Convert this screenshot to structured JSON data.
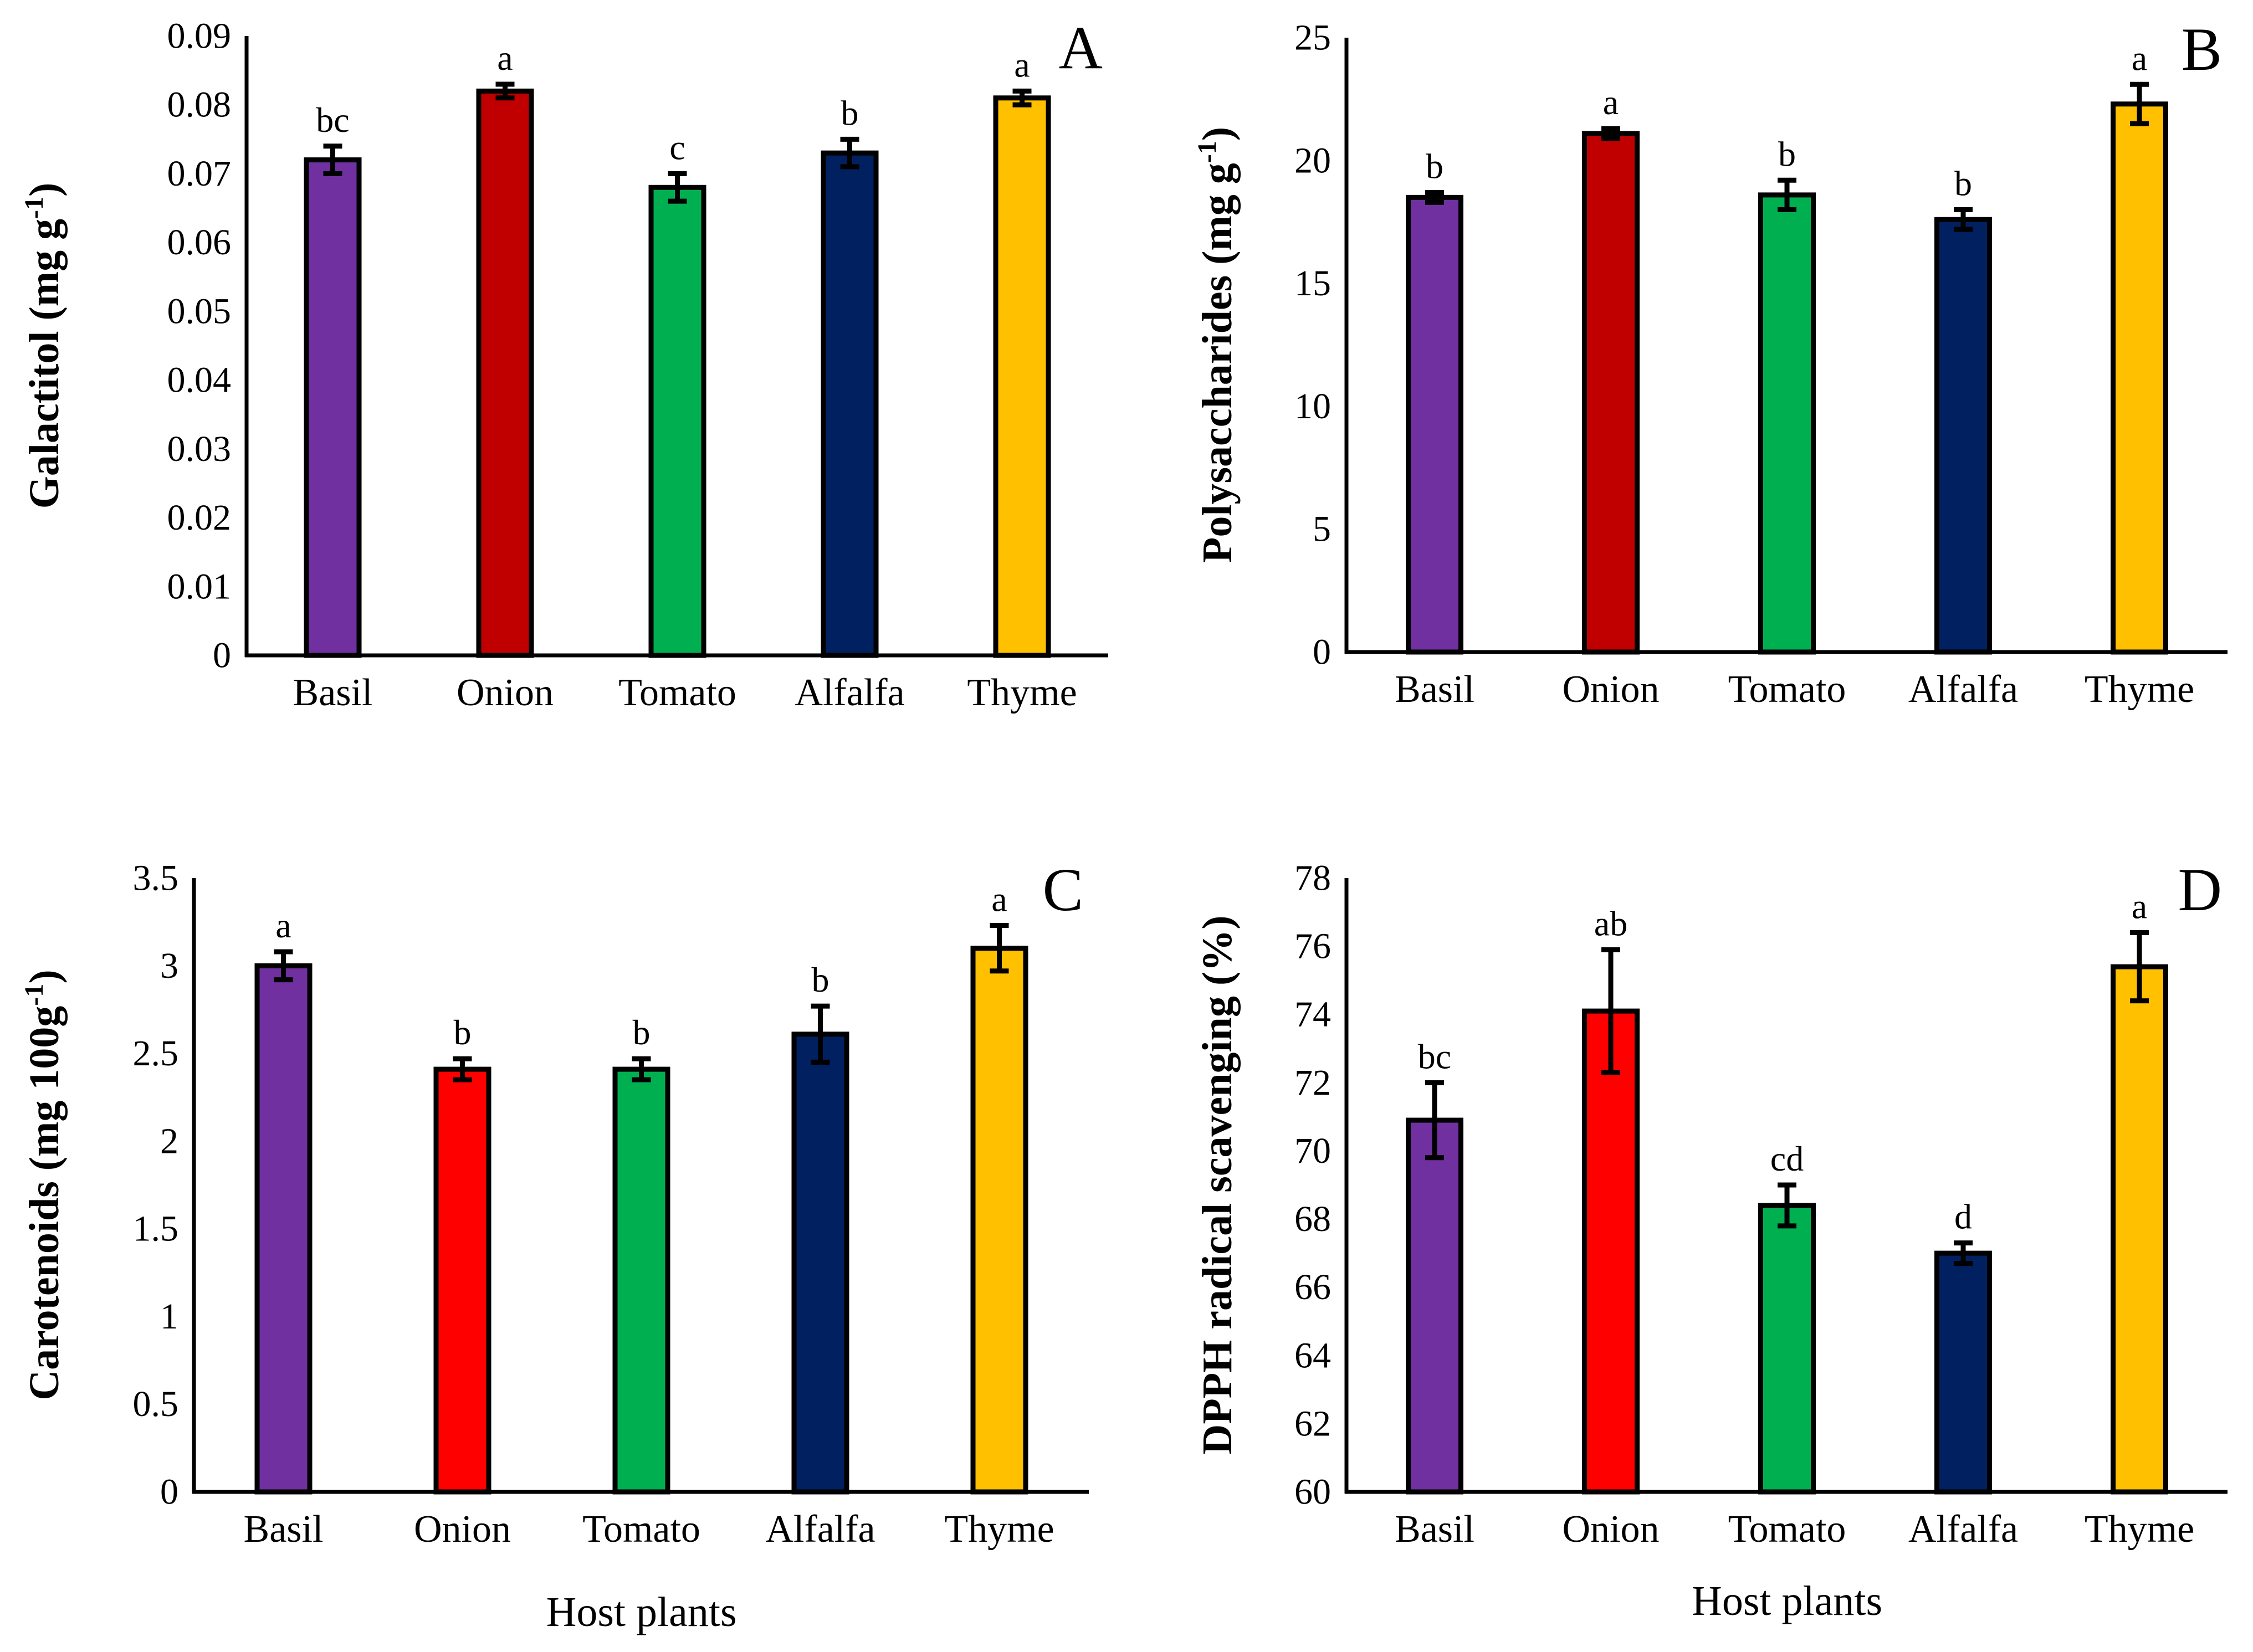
{
  "chart_data": [
    {
      "type": "bar",
      "panel": "A",
      "categories": [
        "Basil",
        "Onion",
        "Tomato",
        "Alfalfa",
        "Thyme"
      ],
      "values": [
        0.072,
        0.082,
        0.068,
        0.073,
        0.081
      ],
      "errors": [
        0.002,
        0.001,
        0.002,
        0.002,
        0.001
      ],
      "significance": [
        "bc",
        "a",
        "c",
        "b",
        "a"
      ],
      "colors": [
        "#7030A0",
        "#C00000",
        "#00B050",
        "#002060",
        "#FFC000"
      ],
      "ylabel": "Galactitol (mg g",
      "ylabel_sup": "-1",
      "ylabel_close": ")",
      "xlabel": "",
      "ylim": [
        0,
        0.09
      ],
      "yticks": [
        0,
        0.01,
        0.02,
        0.03,
        0.04,
        0.05,
        0.06,
        0.07,
        0.08,
        0.09
      ],
      "ytick_labels": [
        "0",
        "0.01",
        "0.02",
        "0.03",
        "0.04",
        "0.05",
        "0.06",
        "0.07",
        "0.08",
        "0.09"
      ]
    },
    {
      "type": "bar",
      "panel": "B",
      "categories": [
        "Basil",
        "Onion",
        "Tomato",
        "Alfalfa",
        "Thyme"
      ],
      "values": [
        18.5,
        21.1,
        18.6,
        17.6,
        22.3
      ],
      "errors": [
        0.2,
        0.2,
        0.6,
        0.4,
        0.8
      ],
      "significance": [
        "b",
        "a",
        "b",
        "b",
        "a"
      ],
      "colors": [
        "#7030A0",
        "#C00000",
        "#00B050",
        "#002060",
        "#FFC000"
      ],
      "ylabel": "Polysaccharides (mg g",
      "ylabel_sup": "-1",
      "ylabel_close": ")",
      "xlabel": "",
      "ylim": [
        0,
        25
      ],
      "yticks": [
        0,
        5,
        10,
        15,
        20,
        25
      ],
      "ytick_labels": [
        "0",
        "5",
        "10",
        "15",
        "20",
        "25"
      ]
    },
    {
      "type": "bar",
      "panel": "C",
      "categories": [
        "Basil",
        "Onion",
        "Tomato",
        "Alfalfa",
        "Thyme"
      ],
      "values": [
        3.0,
        2.41,
        2.41,
        2.61,
        3.1
      ],
      "errors": [
        0.08,
        0.06,
        0.06,
        0.16,
        0.13
      ],
      "significance": [
        "a",
        "b",
        "b",
        "b",
        "a"
      ],
      "colors": [
        "#7030A0",
        "#FF0000",
        "#00B050",
        "#002060",
        "#FFC000"
      ],
      "ylabel": "Carotenoids (mg 100g",
      "ylabel_sup": "-1",
      "ylabel_close": ")",
      "xlabel": "Host plants",
      "ylim": [
        0,
        3.5
      ],
      "yticks": [
        0,
        0.5,
        1,
        1.5,
        2,
        2.5,
        3,
        3.5
      ],
      "ytick_labels": [
        "0",
        "0.5",
        "1",
        "1.5",
        "2",
        "2.5",
        "3",
        "3.5"
      ]
    },
    {
      "type": "bar",
      "panel": "D",
      "categories": [
        "Basil",
        "Onion",
        "Tomato",
        "Alfalfa",
        "Thyme"
      ],
      "values": [
        70.9,
        74.1,
        68.4,
        67.0,
        75.4
      ],
      "errors": [
        1.1,
        1.8,
        0.6,
        0.3,
        1.0
      ],
      "significance": [
        "bc",
        "ab",
        "cd",
        "d",
        "a"
      ],
      "colors": [
        "#7030A0",
        "#FF0000",
        "#00B050",
        "#002060",
        "#FFC000"
      ],
      "ylabel": "DPPH radical scavenging (%)",
      "ylabel_sup": "",
      "ylabel_close": "",
      "xlabel": "Host plants",
      "ylim": [
        60,
        78
      ],
      "yticks": [
        60,
        62,
        64,
        66,
        68,
        70,
        72,
        74,
        76,
        78
      ],
      "ytick_labels": [
        "60",
        "62",
        "64",
        "66",
        "68",
        "70",
        "72",
        "74",
        "76",
        "78"
      ]
    }
  ]
}
